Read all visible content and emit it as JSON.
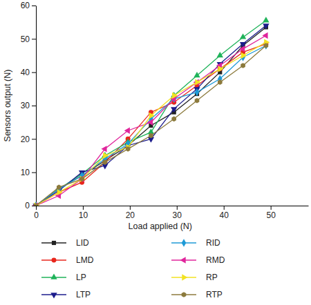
{
  "chart_data": {
    "type": "line",
    "x_label": "Load applied (N)",
    "y_label": "Sensors output (N)",
    "x": [
      0,
      4.9,
      9.8,
      14.7,
      19.6,
      24.5,
      29.4,
      34.3,
      39.2,
      44.1,
      49
    ],
    "xlim": [
      0,
      58
    ],
    "xticks": [
      0,
      10,
      20,
      30,
      40,
      50
    ],
    "ylim": [
      0,
      60
    ],
    "yticks": [
      0,
      10,
      20,
      30,
      40,
      50,
      60
    ],
    "grid": false,
    "legend": "bottom",
    "series": [
      {
        "name": "LID",
        "color": "#222222",
        "marker": "square",
        "values": [
          0,
          5,
          9,
          13.5,
          18,
          24,
          28,
          33.5,
          40,
          48,
          53.5
        ]
      },
      {
        "name": "LMD",
        "color": "#e8261c",
        "marker": "circle",
        "values": [
          0,
          4,
          7,
          13,
          20,
          28,
          31,
          36,
          41,
          46,
          48.5
        ]
      },
      {
        "name": "LP",
        "color": "#1fb35a",
        "marker": "triangle-up",
        "values": [
          0,
          5,
          9.5,
          15,
          19,
          22,
          33,
          39,
          45,
          50.5,
          55.5
        ]
      },
      {
        "name": "LTP",
        "color": "#1c1c8c",
        "marker": "triangle-down",
        "values": [
          0,
          4.5,
          10,
          12,
          18,
          20,
          29,
          35,
          42.5,
          48.5,
          54
        ]
      },
      {
        "name": "RID",
        "color": "#1e9ad6",
        "marker": "diamond",
        "values": [
          0,
          5,
          9,
          14,
          18.5,
          26,
          32,
          34,
          38,
          44.5,
          48
        ]
      },
      {
        "name": "RMD",
        "color": "#e0259c",
        "marker": "triangle-left",
        "values": [
          0,
          3,
          8,
          17,
          22.5,
          25,
          32,
          37,
          42,
          47,
          51
        ]
      },
      {
        "name": "RP",
        "color": "#f2e222",
        "marker": "triangle-right",
        "values": [
          0,
          4,
          8,
          15,
          17.5,
          27,
          33,
          37,
          41,
          45,
          49
        ]
      },
      {
        "name": "RTP",
        "color": "#8c7a3c",
        "marker": "hexagon",
        "values": [
          0,
          5.5,
          8,
          13,
          17,
          21,
          26,
          31.5,
          37,
          42,
          48
        ]
      }
    ]
  }
}
